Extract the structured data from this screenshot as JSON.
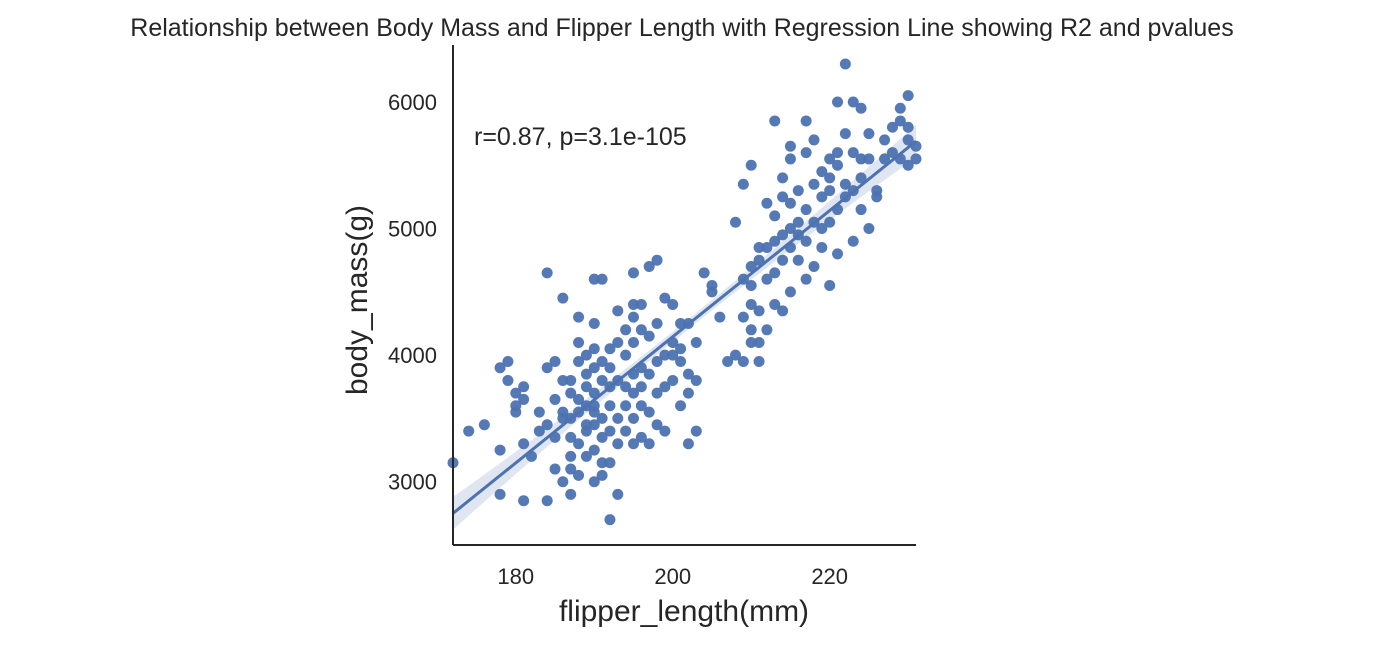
{
  "chart_data": {
    "type": "scatter",
    "title": "Relationship between Body Mass and Flipper Length with Regression Line showing R2 and pvalues",
    "xlabel": "flipper_length(mm)",
    "ylabel": "body_mass(g)",
    "annotation": "r=0.87, p=3.1e-105",
    "xlim": [
      172,
      231
    ],
    "ylim": [
      2500,
      6450
    ],
    "xticks": [
      180,
      200,
      220
    ],
    "yticks": [
      3000,
      4000,
      5000,
      6000
    ],
    "grid": false,
    "legend": "none",
    "series": [
      {
        "color": "#4c72b0",
        "points": [
          [
            172,
            3150
          ],
          [
            174,
            3400
          ],
          [
            176,
            3450
          ],
          [
            178,
            3250
          ],
          [
            178,
            2900
          ],
          [
            178,
            3900
          ],
          [
            179,
            3950
          ],
          [
            179,
            3800
          ],
          [
            180,
            3600
          ],
          [
            180,
            3550
          ],
          [
            180,
            3700
          ],
          [
            181,
            2850
          ],
          [
            181,
            3300
          ],
          [
            181,
            3650
          ],
          [
            181,
            3750
          ],
          [
            182,
            3200
          ],
          [
            183,
            3550
          ],
          [
            183,
            3400
          ],
          [
            184,
            3450
          ],
          [
            184,
            4650
          ],
          [
            184,
            2850
          ],
          [
            184,
            3900
          ],
          [
            185,
            3100
          ],
          [
            185,
            3350
          ],
          [
            185,
            3650
          ],
          [
            185,
            3950
          ],
          [
            186,
            3000
          ],
          [
            186,
            3500
          ],
          [
            186,
            3800
          ],
          [
            186,
            3550
          ],
          [
            186,
            4450
          ],
          [
            187,
            2900
          ],
          [
            187,
            3200
          ],
          [
            187,
            3350
          ],
          [
            187,
            3500
          ],
          [
            187,
            3700
          ],
          [
            187,
            3800
          ],
          [
            187,
            3100
          ],
          [
            188,
            3300
          ],
          [
            188,
            3050
          ],
          [
            188,
            3550
          ],
          [
            188,
            3950
          ],
          [
            188,
            4100
          ],
          [
            188,
            4300
          ],
          [
            188,
            3650
          ],
          [
            189,
            3450
          ],
          [
            189,
            3200
          ],
          [
            189,
            3600
          ],
          [
            189,
            3750
          ],
          [
            189,
            3850
          ],
          [
            189,
            4000
          ],
          [
            189,
            3400
          ],
          [
            190,
            3000
          ],
          [
            190,
            3250
          ],
          [
            190,
            3450
          ],
          [
            190,
            3550
          ],
          [
            190,
            3700
          ],
          [
            190,
            3900
          ],
          [
            190,
            4050
          ],
          [
            190,
            4250
          ],
          [
            190,
            4600
          ],
          [
            190,
            3600
          ],
          [
            191,
            3050
          ],
          [
            191,
            3350
          ],
          [
            191,
            3500
          ],
          [
            191,
            3800
          ],
          [
            191,
            3950
          ],
          [
            191,
            4600
          ],
          [
            191,
            3150
          ],
          [
            192,
            2700
          ],
          [
            192,
            3150
          ],
          [
            192,
            3400
          ],
          [
            192,
            3600
          ],
          [
            192,
            3750
          ],
          [
            192,
            3900
          ],
          [
            192,
            4050
          ],
          [
            193,
            2900
          ],
          [
            193,
            3300
          ],
          [
            193,
            3500
          ],
          [
            193,
            3800
          ],
          [
            193,
            4100
          ],
          [
            193,
            4350
          ],
          [
            194,
            3600
          ],
          [
            194,
            3400
          ],
          [
            194,
            3750
          ],
          [
            194,
            4200
          ],
          [
            194,
            4000
          ],
          [
            195,
            3300
          ],
          [
            195,
            3500
          ],
          [
            195,
            3700
          ],
          [
            195,
            3850
          ],
          [
            195,
            4100
          ],
          [
            195,
            4300
          ],
          [
            195,
            4400
          ],
          [
            195,
            4650
          ],
          [
            196,
            3350
          ],
          [
            196,
            3600
          ],
          [
            196,
            3750
          ],
          [
            196,
            3900
          ],
          [
            196,
            4200
          ],
          [
            196,
            4400
          ],
          [
            197,
            3300
          ],
          [
            197,
            3550
          ],
          [
            197,
            3850
          ],
          [
            197,
            4150
          ],
          [
            197,
            4700
          ],
          [
            198,
            3450
          ],
          [
            198,
            3700
          ],
          [
            198,
            3950
          ],
          [
            198,
            4250
          ],
          [
            198,
            4750
          ],
          [
            199,
            3400
          ],
          [
            199,
            3750
          ],
          [
            199,
            4000
          ],
          [
            199,
            4450
          ],
          [
            200,
            3800
          ],
          [
            200,
            4000
          ],
          [
            200,
            4100
          ],
          [
            200,
            4400
          ],
          [
            201,
            3600
          ],
          [
            201,
            3950
          ],
          [
            201,
            4050
          ],
          [
            201,
            4250
          ],
          [
            202,
            3300
          ],
          [
            202,
            3700
          ],
          [
            202,
            3850
          ],
          [
            202,
            4250
          ],
          [
            203,
            3400
          ],
          [
            203,
            3800
          ],
          [
            203,
            4100
          ],
          [
            204,
            4650
          ],
          [
            205,
            4500
          ],
          [
            205,
            4550
          ],
          [
            206,
            4300
          ],
          [
            207,
            3950
          ],
          [
            208,
            4000
          ],
          [
            208,
            5050
          ],
          [
            209,
            3950
          ],
          [
            209,
            4300
          ],
          [
            209,
            4600
          ],
          [
            209,
            5350
          ],
          [
            210,
            4100
          ],
          [
            210,
            4400
          ],
          [
            210,
            4550
          ],
          [
            210,
            4700
          ],
          [
            210,
            5500
          ],
          [
            210,
            4200
          ],
          [
            211,
            3950
          ],
          [
            211,
            4100
          ],
          [
            211,
            4350
          ],
          [
            211,
            4750
          ],
          [
            211,
            4850
          ],
          [
            212,
            4200
          ],
          [
            212,
            4600
          ],
          [
            212,
            4850
          ],
          [
            212,
            5200
          ],
          [
            213,
            4400
          ],
          [
            213,
            4650
          ],
          [
            213,
            4900
          ],
          [
            213,
            5100
          ],
          [
            213,
            5850
          ],
          [
            214,
            4350
          ],
          [
            214,
            4750
          ],
          [
            214,
            4950
          ],
          [
            214,
            5250
          ],
          [
            214,
            5400
          ],
          [
            215,
            4500
          ],
          [
            215,
            4850
          ],
          [
            215,
            5000
          ],
          [
            215,
            5200
          ],
          [
            215,
            5550
          ],
          [
            215,
            5650
          ],
          [
            216,
            4750
          ],
          [
            216,
            5050
          ],
          [
            216,
            5300
          ],
          [
            216,
            4950
          ],
          [
            217,
            4600
          ],
          [
            217,
            4900
          ],
          [
            217,
            5150
          ],
          [
            217,
            5600
          ],
          [
            217,
            5850
          ],
          [
            218,
            5050
          ],
          [
            218,
            5350
          ],
          [
            218,
            5700
          ],
          [
            218,
            4700
          ],
          [
            219,
            4850
          ],
          [
            219,
            5000
          ],
          [
            219,
            5250
          ],
          [
            219,
            5450
          ],
          [
            220,
            4550
          ],
          [
            220,
            5050
          ],
          [
            220,
            5300
          ],
          [
            220,
            5550
          ],
          [
            220,
            5400
          ],
          [
            221,
            4800
          ],
          [
            221,
            5500
          ],
          [
            221,
            5600
          ],
          [
            221,
            6000
          ],
          [
            221,
            5150
          ],
          [
            222,
            5250
          ],
          [
            222,
            5350
          ],
          [
            222,
            5750
          ],
          [
            222,
            6300
          ],
          [
            223,
            4900
          ],
          [
            223,
            5300
          ],
          [
            223,
            5600
          ],
          [
            223,
            6000
          ],
          [
            224,
            5150
          ],
          [
            224,
            5400
          ],
          [
            224,
            5550
          ],
          [
            224,
            5950
          ],
          [
            225,
            5550
          ],
          [
            225,
            5750
          ],
          [
            225,
            5000
          ],
          [
            226,
            5250
          ],
          [
            226,
            5300
          ],
          [
            227,
            5550
          ],
          [
            227,
            5700
          ],
          [
            228,
            5600
          ],
          [
            228,
            5800
          ],
          [
            229,
            5550
          ],
          [
            229,
            5850
          ],
          [
            229,
            5950
          ],
          [
            230,
            5500
          ],
          [
            230,
            5700
          ],
          [
            230,
            6050
          ],
          [
            230,
            5800
          ],
          [
            231,
            5650
          ],
          [
            231,
            5550
          ]
        ]
      }
    ],
    "regression": {
      "x": [
        172,
        231
      ],
      "y": [
        2750,
        5690
      ]
    }
  }
}
